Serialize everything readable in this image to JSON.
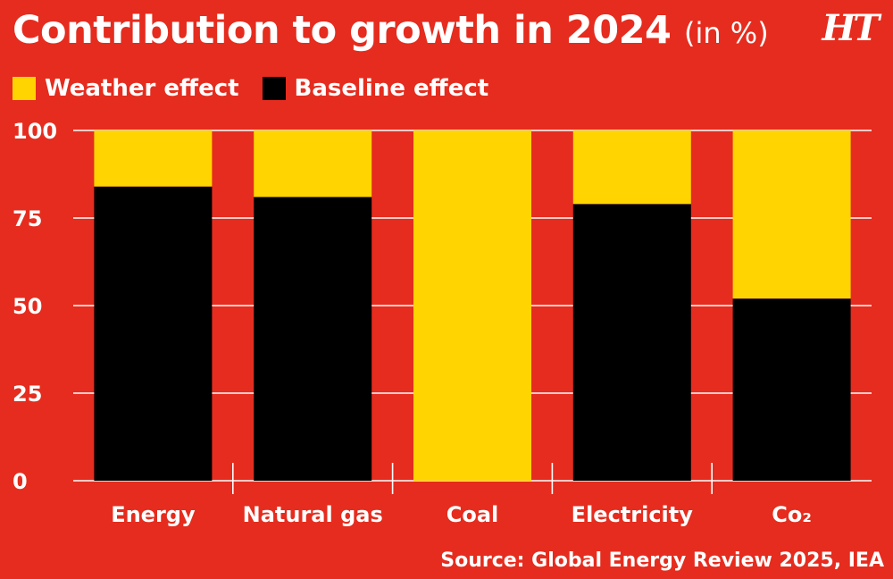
{
  "header": {
    "title": "Contribution to growth in 2024",
    "unit": "(in %)",
    "logo_text": "HT"
  },
  "legend": [
    {
      "label": "Weather effect",
      "color": "#FFD400"
    },
    {
      "label": "Baseline effect",
      "color": "#000000"
    }
  ],
  "source": "Source: Global Energy Review 2025, IEA",
  "colors": {
    "background": "#E52C1E",
    "weather": "#FFD400",
    "baseline": "#000000",
    "text": "#ffffff"
  },
  "chart_data": {
    "type": "bar",
    "stacked": true,
    "categories": [
      "Energy",
      "Natural gas",
      "Coal",
      "Electricity",
      "Co₂"
    ],
    "series": [
      {
        "name": "Baseline effect",
        "values": [
          84,
          81,
          0,
          79,
          52
        ]
      },
      {
        "name": "Weather effect",
        "values": [
          16,
          19,
          100,
          21,
          48
        ]
      }
    ],
    "ylim": [
      0,
      100
    ],
    "yticks": [
      0,
      25,
      50,
      75,
      100
    ],
    "grid": true,
    "legend_position": "top-left"
  }
}
